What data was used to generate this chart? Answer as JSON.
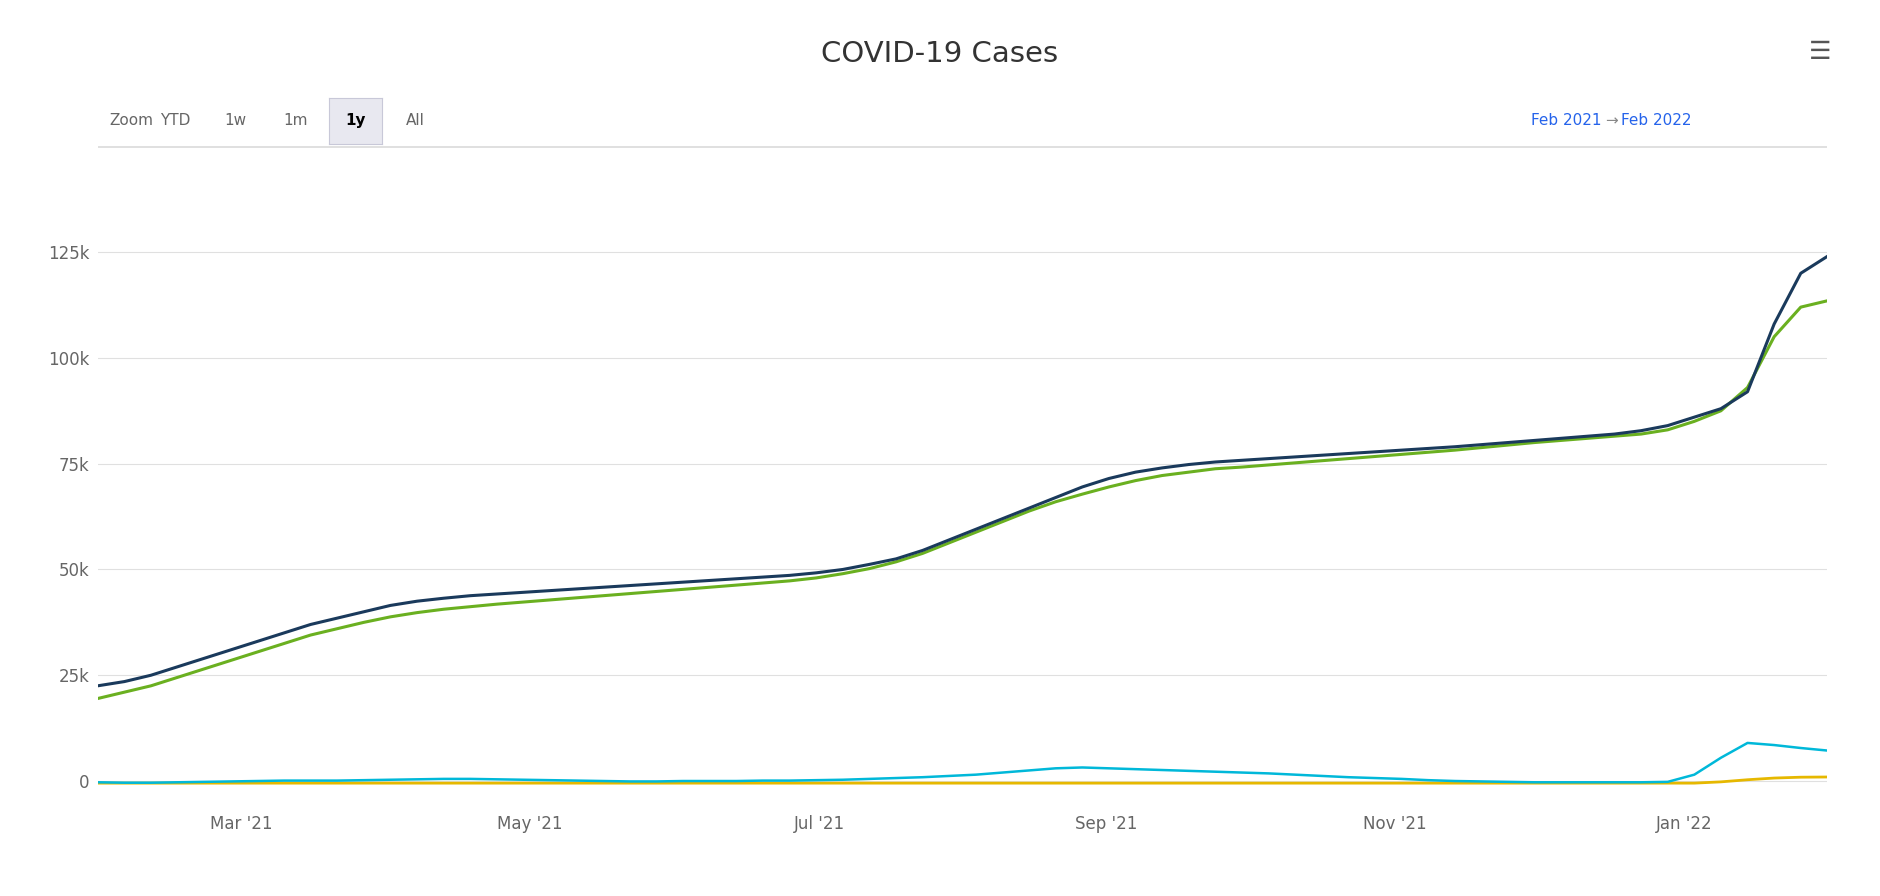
{
  "title": "COVID-19 Cases",
  "background_color": "#ffffff",
  "zoom_label": "Zoom",
  "zoom_buttons": [
    "YTD",
    "1w",
    "1m",
    "1y",
    "All"
  ],
  "active_button": "1y",
  "date_range_left": "Feb 2021",
  "date_range_right": "Feb 2022",
  "x_tick_labels": [
    "Mar '21",
    "May '21",
    "Jul '21",
    "Sep '21",
    "Nov '21",
    "Jan '22"
  ],
  "y_ticks": [
    0,
    25000,
    50000,
    75000,
    100000,
    125000
  ],
  "y_tick_labels": [
    "0",
    "25k",
    "50k",
    "75k",
    "100k",
    "125k"
  ],
  "ylim": [
    -6000,
    138000
  ],
  "line_colors": {
    "dark_blue": "#1a3a5c",
    "green": "#6ab020",
    "cyan": "#00b8d9",
    "yellow": "#e6b800"
  },
  "dark_blue_data": [
    22500,
    23500,
    25000,
    27000,
    29000,
    31000,
    33000,
    35000,
    37000,
    38500,
    40000,
    41500,
    42500,
    43200,
    43800,
    44200,
    44600,
    45000,
    45400,
    45800,
    46200,
    46600,
    47000,
    47400,
    47800,
    48200,
    48600,
    49200,
    50000,
    51200,
    52500,
    54500,
    57000,
    59500,
    62000,
    64500,
    67000,
    69500,
    71500,
    73000,
    74000,
    74800,
    75400,
    75800,
    76200,
    76600,
    77000,
    77400,
    77800,
    78200,
    78600,
    79000,
    79500,
    80000,
    80500,
    81000,
    81500,
    82000,
    82800,
    84000,
    86000,
    88000,
    92000,
    108000,
    120000,
    124000
  ],
  "green_data": [
    19500,
    21000,
    22500,
    24500,
    26500,
    28500,
    30500,
    32500,
    34500,
    36000,
    37500,
    38800,
    39800,
    40600,
    41200,
    41800,
    42300,
    42800,
    43300,
    43800,
    44300,
    44800,
    45300,
    45800,
    46300,
    46800,
    47300,
    48000,
    49000,
    50200,
    51800,
    53800,
    56300,
    58800,
    61300,
    63800,
    66000,
    67800,
    69500,
    71000,
    72200,
    73000,
    73800,
    74200,
    74700,
    75200,
    75700,
    76200,
    76700,
    77200,
    77700,
    78200,
    78800,
    79400,
    80000,
    80500,
    81000,
    81500,
    82000,
    83000,
    85000,
    87500,
    93000,
    105000,
    112000,
    113500
  ],
  "cyan_data": [
    -300,
    -400,
    -400,
    -300,
    -200,
    -100,
    0,
    100,
    100,
    100,
    200,
    300,
    400,
    500,
    500,
    400,
    300,
    200,
    100,
    0,
    -100,
    -100,
    0,
    0,
    0,
    100,
    100,
    200,
    300,
    500,
    700,
    900,
    1200,
    1500,
    2000,
    2500,
    3000,
    3200,
    3000,
    2800,
    2600,
    2400,
    2200,
    2000,
    1800,
    1500,
    1200,
    900,
    700,
    500,
    200,
    0,
    -100,
    -200,
    -300,
    -300,
    -300,
    -300,
    -300,
    -200,
    1500,
    5500,
    9000,
    8500,
    7800,
    7200
  ],
  "yellow_data": [
    -500,
    -500,
    -500,
    -500,
    -500,
    -500,
    -500,
    -500,
    -500,
    -500,
    -500,
    -500,
    -500,
    -500,
    -500,
    -500,
    -500,
    -500,
    -500,
    -500,
    -500,
    -500,
    -500,
    -500,
    -500,
    -500,
    -500,
    -500,
    -500,
    -500,
    -500,
    -500,
    -500,
    -500,
    -500,
    -500,
    -500,
    -500,
    -500,
    -500,
    -500,
    -500,
    -500,
    -500,
    -500,
    -500,
    -500,
    -500,
    -500,
    -500,
    -500,
    -500,
    -500,
    -500,
    -500,
    -500,
    -500,
    -500,
    -500,
    -500,
    -500,
    -200,
    300,
    700,
    900,
    950
  ],
  "grid_color": "#e0e0e0",
  "tick_color": "#666666",
  "title_color": "#333333",
  "zoom_text_color": "#666666",
  "button_bg_active": "#e8e8f0",
  "button_border_active": "#c8c8d8",
  "button_text_active": "#000000",
  "button_bg_inactive": "#f0f0f0",
  "date_range_color": "#2563eb",
  "arrow_color": "#888888",
  "menu_color": "#555555"
}
